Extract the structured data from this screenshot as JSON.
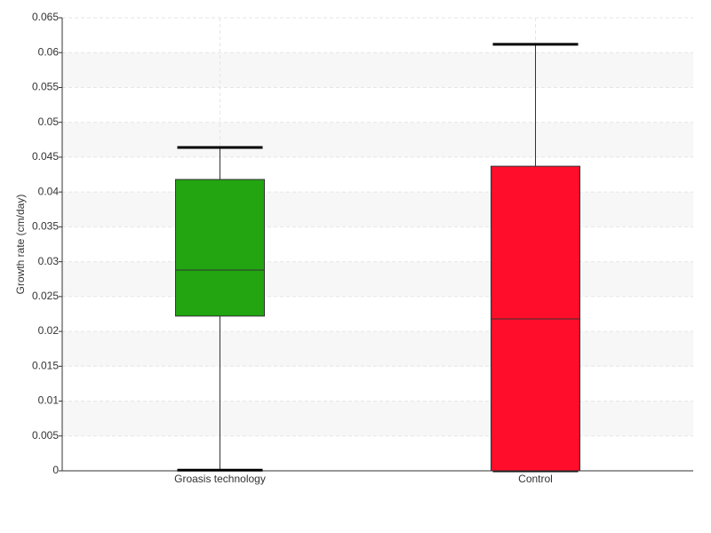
{
  "chart_data": {
    "type": "box",
    "y_label": "Growth rate (cm/day)",
    "categories": [
      "Groasis technology",
      "Control"
    ],
    "boxes": [
      {
        "color": "#22a511",
        "min": 0.0001,
        "q1": 0.0222,
        "median": 0.0288,
        "q3": 0.0418,
        "max": 0.0464
      },
      {
        "color": "#ff0d2a",
        "min": 0,
        "q1": 0,
        "median": 0.0218,
        "q3": 0.0437,
        "max": 0.0612
      }
    ],
    "ylim": [
      0,
      0.065
    ],
    "yticks": [
      0,
      0.005,
      0.01,
      0.015,
      0.02,
      0.025,
      0.03,
      0.035,
      0.04,
      0.045,
      0.05,
      0.055,
      0.06,
      0.065
    ],
    "grid": true
  }
}
